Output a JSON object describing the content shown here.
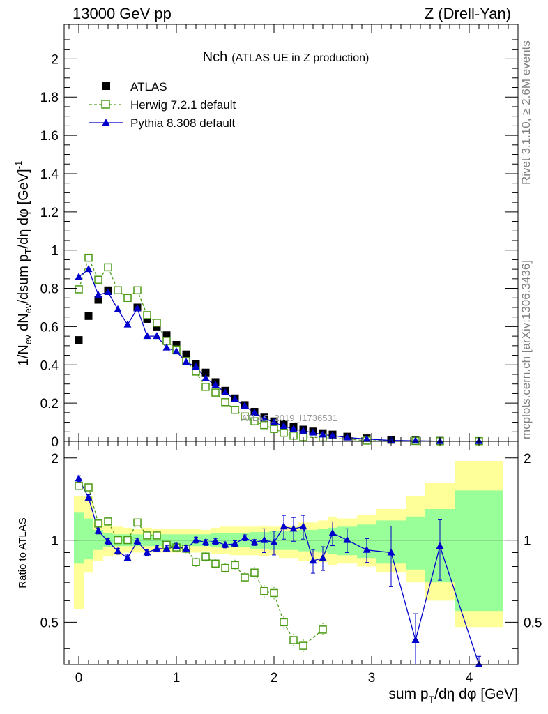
{
  "header": {
    "energy_label": "13000 GeV pp",
    "process_label": "Z (Drell-Yan)"
  },
  "side_text": {
    "rivet": "Rivet 3.1.10, ≥ 2.6M events",
    "mcplots": "mcplots.cern.ch [arXiv:1306.3436]"
  },
  "watermark": "ATLAS_2019_I1736531",
  "colors": {
    "atlas": "#000000",
    "herwig": "#4a9a12",
    "pythia": "#0000cc",
    "band_green": "#99ff99",
    "band_yellow": "#ffff99"
  },
  "chart_data": [
    {
      "type": "scatter",
      "title": "Nch",
      "subtitle": "(ATLAS UE in Z production)",
      "ylabel": "1/N_ev dN_ev/dsum p_T/dη dφ [GeV]^-1",
      "xlabel": "sum p_T/dη dφ [GeV]",
      "xlim": [
        -0.15,
        4.5
      ],
      "ylim": [
        0,
        2.18
      ],
      "xticks": [
        "0",
        "1",
        "2",
        "3",
        "4"
      ],
      "yticks": [
        "0",
        "0.2",
        "0.4",
        "0.6",
        "0.8",
        "1",
        "1.2",
        "1.4",
        "1.6",
        "1.8",
        "2"
      ],
      "legend_position": "top-left",
      "series": [
        {
          "name": "ATLAS",
          "x": [
            0,
            0.1,
            0.2,
            0.3,
            0.4,
            0.5,
            0.6,
            0.7,
            0.8,
            0.9,
            1.0,
            1.1,
            1.2,
            1.3,
            1.4,
            1.5,
            1.6,
            1.7,
            1.8,
            1.9,
            2.0,
            2.1,
            2.2,
            2.3,
            2.4,
            2.5,
            2.6,
            2.75,
            2.95,
            3.2,
            3.45,
            3.7,
            4.1
          ],
          "y": [
            0.53,
            0.655,
            0.74,
            0.79,
            0.79,
            0.75,
            0.7,
            0.64,
            0.6,
            0.555,
            0.505,
            0.455,
            0.405,
            0.36,
            0.31,
            0.265,
            0.225,
            0.19,
            0.155,
            0.125,
            0.105,
            0.09,
            0.075,
            0.062,
            0.052,
            0.043,
            0.036,
            0.025,
            0.016,
            0.008,
            0.005,
            0.003,
            0.002
          ]
        },
        {
          "name": "Herwig 7.2.1 default",
          "x": [
            0,
            0.1,
            0.2,
            0.3,
            0.4,
            0.5,
            0.6,
            0.7,
            0.8,
            0.9,
            1.0,
            1.1,
            1.2,
            1.3,
            1.4,
            1.5,
            1.6,
            1.7,
            1.8,
            1.9,
            2.0,
            2.1,
            2.2,
            2.3,
            2.5,
            2.95,
            3.45,
            3.7,
            4.1
          ],
          "y": [
            0.795,
            0.96,
            0.845,
            0.91,
            0.79,
            0.75,
            0.79,
            0.66,
            0.62,
            0.525,
            0.48,
            0.42,
            0.365,
            0.285,
            0.255,
            0.205,
            0.165,
            0.13,
            0.105,
            0.085,
            0.065,
            0.045,
            0.03,
            0.022,
            0.02,
            0.004,
            0.002,
            0.001,
            0.001
          ]
        },
        {
          "name": "Pythia 8.308 default",
          "x": [
            0,
            0.1,
            0.2,
            0.3,
            0.4,
            0.5,
            0.6,
            0.7,
            0.8,
            0.9,
            1.0,
            1.1,
            1.2,
            1.3,
            1.4,
            1.5,
            1.6,
            1.7,
            1.8,
            1.9,
            2.0,
            2.1,
            2.2,
            2.3,
            2.4,
            2.5,
            2.6,
            2.75,
            2.95,
            3.2,
            3.45,
            3.7,
            4.1
          ],
          "y": [
            0.86,
            0.9,
            0.765,
            0.78,
            0.69,
            0.61,
            0.695,
            0.55,
            0.55,
            0.49,
            0.47,
            0.415,
            0.39,
            0.33,
            0.295,
            0.255,
            0.22,
            0.185,
            0.15,
            0.12,
            0.1,
            0.08,
            0.065,
            0.055,
            0.045,
            0.035,
            0.03,
            0.02,
            0.012,
            0.005,
            0.003,
            0.001,
            0.001
          ]
        }
      ]
    },
    {
      "type": "scatter",
      "ylabel": "Ratio to ATLAS",
      "xlim": [
        -0.15,
        4.5
      ],
      "ylim": [
        0.35,
        2.3
      ],
      "yticks": [
        "0.5",
        "1",
        "2"
      ],
      "log_scale_y": true,
      "series": [
        {
          "name": "Herwig 7.2.1 default",
          "x": [
            0,
            0.1,
            0.2,
            0.3,
            0.4,
            0.5,
            0.6,
            0.7,
            0.8,
            0.9,
            1.0,
            1.1,
            1.2,
            1.3,
            1.4,
            1.5,
            1.6,
            1.7,
            1.8,
            1.9,
            2.0,
            2.1,
            2.2,
            2.3,
            2.5
          ],
          "y": [
            1.58,
            1.56,
            1.15,
            1.17,
            1.0,
            1.0,
            1.16,
            1.04,
            1.04,
            0.96,
            0.94,
            0.93,
            0.83,
            0.87,
            0.82,
            0.79,
            0.81,
            0.73,
            0.76,
            0.65,
            0.64,
            0.5,
            0.43,
            0.41,
            0.47
          ]
        },
        {
          "name": "Pythia 8.308 default",
          "x": [
            0,
            0.1,
            0.2,
            0.3,
            0.4,
            0.5,
            0.6,
            0.7,
            0.8,
            0.9,
            1.0,
            1.1,
            1.2,
            1.3,
            1.4,
            1.5,
            1.6,
            1.7,
            1.8,
            1.9,
            2.0,
            2.1,
            2.2,
            2.3,
            2.4,
            2.5,
            2.6,
            2.75,
            2.95,
            3.2,
            3.45,
            3.7,
            4.1
          ],
          "y": [
            1.68,
            1.43,
            1.08,
            0.99,
            0.91,
            0.86,
            0.99,
            0.9,
            0.93,
            0.93,
            0.95,
            0.93,
            1.0,
            0.98,
            0.99,
            0.96,
            0.97,
            1.02,
            0.98,
            1.0,
            0.98,
            1.12,
            1.1,
            1.12,
            0.84,
            0.86,
            1.06,
            1.0,
            0.92,
            0.9,
            0.43,
            0.95,
            0.3
          ]
        }
      ],
      "band_x_edges": [
        -0.05,
        0.05,
        0.15,
        0.25,
        0.35,
        0.45,
        0.55,
        0.65,
        0.75,
        0.85,
        0.95,
        1.05,
        1.15,
        1.25,
        1.35,
        1.45,
        1.55,
        1.65,
        1.75,
        1.85,
        1.95,
        2.05,
        2.15,
        2.25,
        2.35,
        2.45,
        2.55,
        2.65,
        2.85,
        3.05,
        3.35,
        3.55,
        3.85,
        4.35
      ],
      "band_green_hi": [
        1.26,
        1.2,
        1.09,
        1.06,
        1.05,
        1.05,
        1.05,
        1.05,
        1.05,
        1.05,
        1.05,
        1.05,
        1.05,
        1.05,
        1.06,
        1.06,
        1.06,
        1.06,
        1.07,
        1.07,
        1.08,
        1.08,
        1.08,
        1.09,
        1.09,
        1.1,
        1.11,
        1.12,
        1.14,
        1.18,
        1.22,
        1.3,
        1.52
      ],
      "band_green_lo": [
        0.82,
        0.85,
        0.92,
        0.94,
        0.95,
        0.95,
        0.95,
        0.95,
        0.95,
        0.95,
        0.95,
        0.95,
        0.95,
        0.95,
        0.94,
        0.94,
        0.94,
        0.94,
        0.93,
        0.93,
        0.92,
        0.92,
        0.92,
        0.91,
        0.91,
        0.9,
        0.89,
        0.88,
        0.86,
        0.82,
        0.78,
        0.7,
        0.55
      ],
      "band_yellow_hi": [
        1.45,
        1.45,
        1.17,
        1.13,
        1.12,
        1.11,
        1.1,
        1.11,
        1.1,
        1.1,
        1.1,
        1.1,
        1.1,
        1.09,
        1.11,
        1.12,
        1.12,
        1.12,
        1.12,
        1.13,
        1.12,
        1.13,
        1.13,
        1.16,
        1.16,
        1.18,
        1.22,
        1.2,
        1.24,
        1.3,
        1.45,
        1.62,
        1.95
      ],
      "band_yellow_lo": [
        0.56,
        0.76,
        0.84,
        0.87,
        0.88,
        0.9,
        0.9,
        0.9,
        0.9,
        0.9,
        0.9,
        0.91,
        0.9,
        0.91,
        0.89,
        0.89,
        0.88,
        0.88,
        0.88,
        0.87,
        0.88,
        0.86,
        0.86,
        0.84,
        0.84,
        0.83,
        0.81,
        0.82,
        0.8,
        0.76,
        0.7,
        0.6,
        0.48
      ]
    }
  ]
}
